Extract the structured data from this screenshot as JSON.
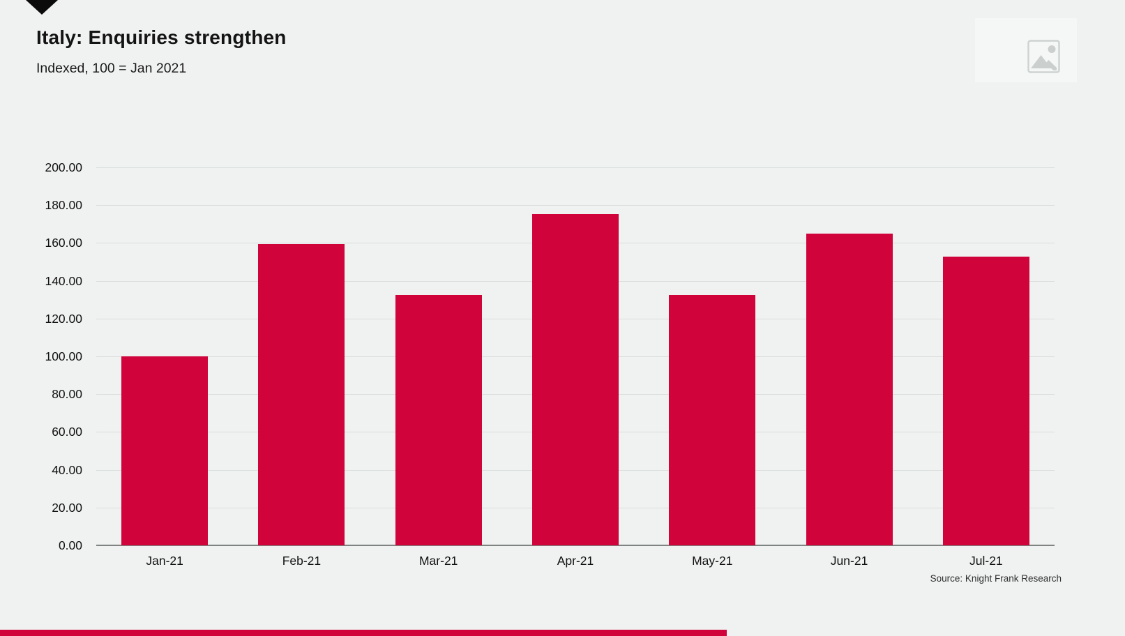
{
  "page": {
    "background": "#f0f2f1",
    "accent_color": "#d0043a"
  },
  "header": {
    "title": "Italy: Enquiries strengthen",
    "subtitle": "Indexed, 100 = Jan 2021",
    "arrow_icon": "black-down-triangle"
  },
  "top_right": {
    "icon": "image-placeholder"
  },
  "source_note": "Source: Knight Frank Research",
  "chart_data": {
    "type": "bar",
    "title": "Italy: Enquiries strengthen",
    "subtitle": "Indexed, 100 = Jan 2021",
    "categories": [
      "Jan-21",
      "Feb-21",
      "Mar-21",
      "Apr-21",
      "May-21",
      "Jun-21",
      "Jul-21"
    ],
    "values": [
      100.0,
      159.4,
      132.6,
      175.3,
      132.6,
      165.0,
      152.9
    ],
    "bar_color": "#d0043a",
    "xlabel": "",
    "ylabel": "",
    "ylim": [
      0,
      200
    ],
    "ytick_step": 20,
    "ytick_labels": [
      "0.00",
      "20.00",
      "40.00",
      "60.00",
      "80.00",
      "100.00",
      "120.00",
      "140.00",
      "160.00",
      "180.00",
      "200.00"
    ],
    "grid": true,
    "legend": "none",
    "source": "Source: Knight Frank Research"
  }
}
